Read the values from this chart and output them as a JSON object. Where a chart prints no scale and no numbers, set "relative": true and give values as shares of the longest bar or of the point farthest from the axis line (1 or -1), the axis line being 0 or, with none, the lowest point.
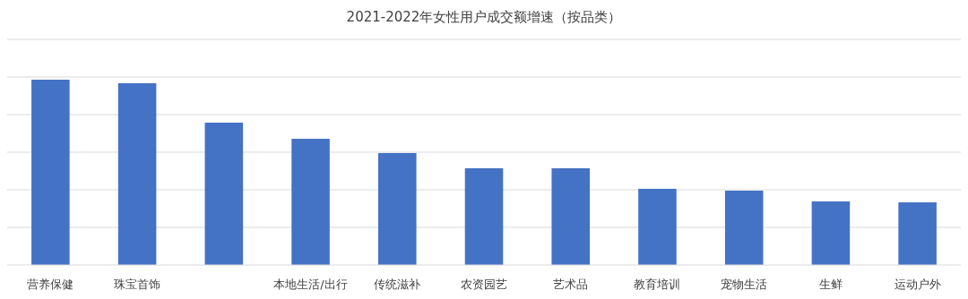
{
  "chart_data": {
    "type": "bar",
    "title": "2021-2022年女性用户成交额增速（按品类）",
    "categories": [
      "营养保健",
      "珠宝首饰",
      null,
      "本地生活/出行",
      "传统滋补",
      "农资园艺",
      "艺术品",
      "教育培训",
      "宠物生活",
      "生鲜",
      "运动户外"
    ],
    "values": [
      1,
      0.981,
      0.768,
      0.681,
      0.604,
      0.522,
      0.522,
      0.411,
      0.401,
      0.343,
      0.338
    ],
    "color": "#4472c4",
    "relative": true,
    "grid": "y"
  }
}
